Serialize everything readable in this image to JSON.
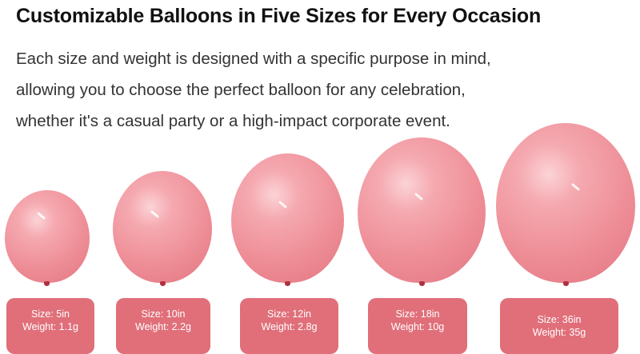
{
  "title": "Customizable Balloons in Five Sizes for Every Occasion",
  "description": [
    "Each size and weight is designed with a specific purpose in mind,",
    "allowing you to choose the perfect balloon for any celebration,",
    "whether it's a casual party or a high-impact corporate event."
  ],
  "balloon_color": "#ee8d96",
  "tag_color": "#e06f79",
  "sizes": [
    {
      "size": "Size: 5in",
      "weight": "Weight: 1.1g"
    },
    {
      "size": "Size: 10in",
      "weight": "Weight: 2.2g"
    },
    {
      "size": "Size: 12in",
      "weight": "Weight: 2.8g"
    },
    {
      "size": "Size: 18in",
      "weight": "Weight: 10g"
    },
    {
      "size": "Size: 36in",
      "weight": "Weight: 35g"
    }
  ]
}
